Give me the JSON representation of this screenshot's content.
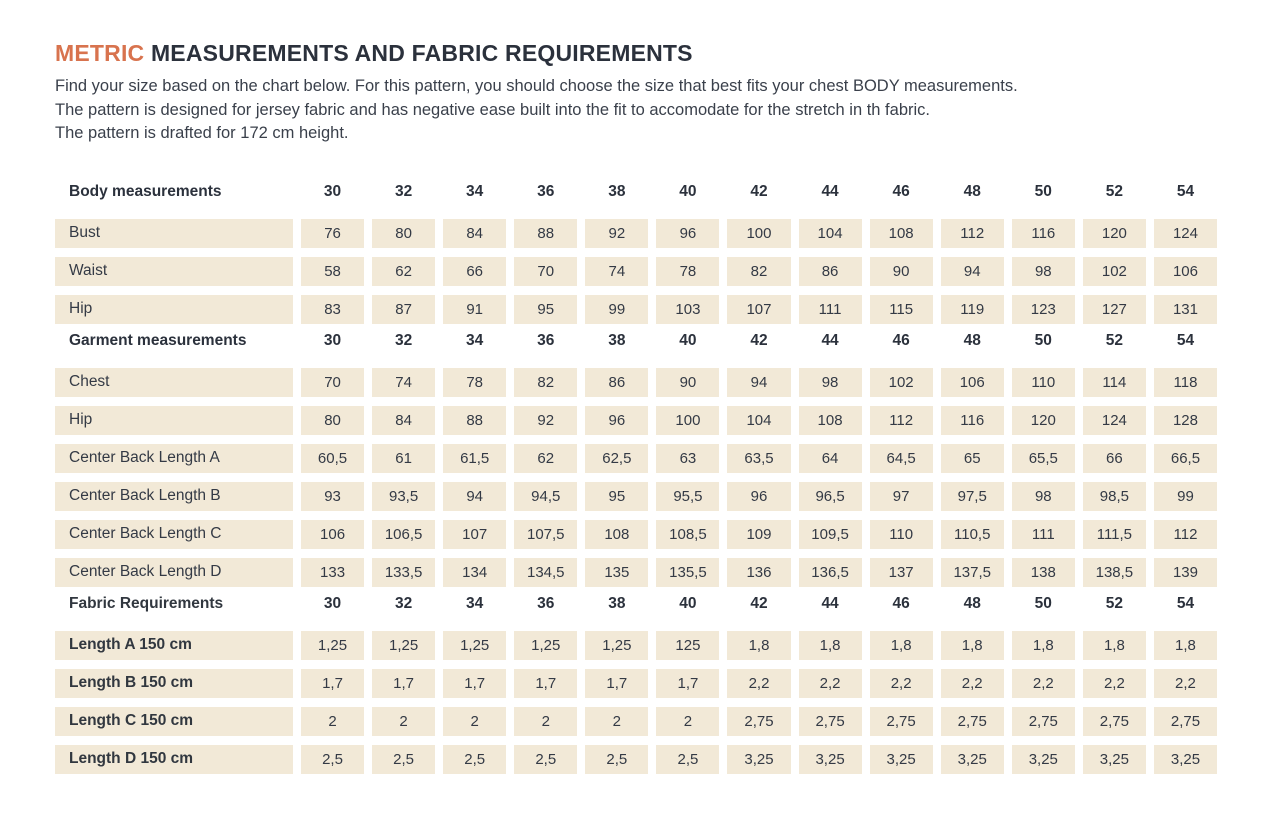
{
  "page": {
    "title": {
      "highlight": "METRIC",
      "rest": " MEASUREMENTS AND FABRIC REQUIREMENTS"
    },
    "intro_lines": [
      "Find your size based on the chart below. For this pattern, you should choose the size that best fits your chest BODY measurements.",
      "The pattern is designed for jersey fabric and has negative ease built into the fit to accomodate for the stretch in th fabric.",
      "The pattern is drafted for 172 cm height."
    ]
  },
  "colors": {
    "accent_orange": "#d8734e",
    "cell_beige": "#f2e9d7",
    "text_dark": "#2b313c",
    "text_body": "#3a404b"
  },
  "table": {
    "sizes": [
      "30",
      "32",
      "34",
      "36",
      "38",
      "40",
      "42",
      "44",
      "46",
      "48",
      "50",
      "52",
      "54"
    ],
    "sections": [
      {
        "header": "Body measurements",
        "label_style": "normal",
        "rows": [
          {
            "label": "Bust",
            "values": [
              "76",
              "80",
              "84",
              "88",
              "92",
              "96",
              "100",
              "104",
              "108",
              "112",
              "116",
              "120",
              "124"
            ]
          },
          {
            "label": "Waist",
            "values": [
              "58",
              "62",
              "66",
              "70",
              "74",
              "78",
              "82",
              "86",
              "90",
              "94",
              "98",
              "102",
              "106"
            ]
          },
          {
            "label": "Hip",
            "values": [
              "83",
              "87",
              "91",
              "95",
              "99",
              "103",
              "107",
              "111",
              "115",
              "119",
              "123",
              "127",
              "131"
            ]
          }
        ]
      },
      {
        "header": "Garment measurements",
        "label_style": "normal",
        "rows": [
          {
            "label": "Chest",
            "values": [
              "70",
              "74",
              "78",
              "82",
              "86",
              "90",
              "94",
              "98",
              "102",
              "106",
              "110",
              "114",
              "118"
            ]
          },
          {
            "label": "Hip",
            "values": [
              "80",
              "84",
              "88",
              "92",
              "96",
              "100",
              "104",
              "108",
              "112",
              "116",
              "120",
              "124",
              "128"
            ]
          },
          {
            "label": "Center Back Length A",
            "values": [
              "60,5",
              "61",
              "61,5",
              "62",
              "62,5",
              "63",
              "63,5",
              "64",
              "64,5",
              "65",
              "65,5",
              "66",
              "66,5"
            ]
          },
          {
            "label": "Center Back Length B",
            "values": [
              "93",
              "93,5",
              "94",
              "94,5",
              "95",
              "95,5",
              "96",
              "96,5",
              "97",
              "97,5",
              "98",
              "98,5",
              "99"
            ]
          },
          {
            "label": "Center Back Length C",
            "values": [
              "106",
              "106,5",
              "107",
              "107,5",
              "108",
              "108,5",
              "109",
              "109,5",
              "110",
              "110,5",
              "111",
              "111,5",
              "112"
            ]
          },
          {
            "label": "Center Back Length D",
            "values": [
              "133",
              "133,5",
              "134",
              "134,5",
              "135",
              "135,5",
              "136",
              "136,5",
              "137",
              "137,5",
              "138",
              "138,5",
              "139"
            ]
          }
        ]
      },
      {
        "header": "Fabric Requirements",
        "label_style": "semibold",
        "rows": [
          {
            "label": "Length A 150 cm",
            "values": [
              "1,25",
              "1,25",
              "1,25",
              "1,25",
              "1,25",
              "125",
              "1,8",
              "1,8",
              "1,8",
              "1,8",
              "1,8",
              "1,8",
              "1,8"
            ]
          },
          {
            "label": "Length B 150 cm",
            "values": [
              "1,7",
              "1,7",
              "1,7",
              "1,7",
              "1,7",
              "1,7",
              "2,2",
              "2,2",
              "2,2",
              "2,2",
              "2,2",
              "2,2",
              "2,2"
            ]
          },
          {
            "label": "Length C 150 cm",
            "values": [
              "2",
              "2",
              "2",
              "2",
              "2",
              "2",
              "2,75",
              "2,75",
              "2,75",
              "2,75",
              "2,75",
              "2,75",
              "2,75"
            ]
          },
          {
            "label": "Length D 150 cm",
            "values": [
              "2,5",
              "2,5",
              "2,5",
              "2,5",
              "2,5",
              "2,5",
              "3,25",
              "3,25",
              "3,25",
              "3,25",
              "3,25",
              "3,25",
              "3,25"
            ]
          }
        ]
      }
    ]
  }
}
